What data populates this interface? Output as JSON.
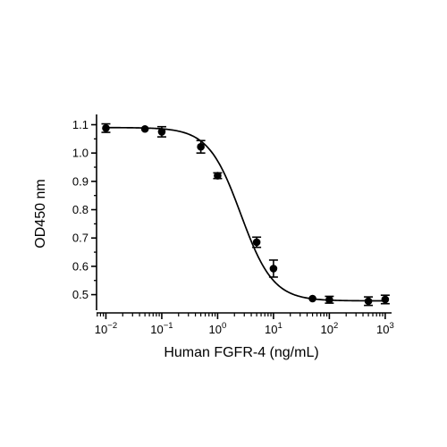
{
  "chart_data": {
    "type": "scatter",
    "xlabel": "Human FGFR-4 (ng/mL)",
    "ylabel": "OD450 nm",
    "xscale": "log",
    "xlim": [
      0.0068,
      1300
    ],
    "ylim": [
      0.445,
      1.13
    ],
    "x_ticks": [
      {
        "value": 0.01,
        "base": "10",
        "exp": "-2"
      },
      {
        "value": 0.1,
        "base": "10",
        "exp": "-1"
      },
      {
        "value": 1,
        "base": "10",
        "exp": "0"
      },
      {
        "value": 10,
        "base": "10",
        "exp": "1"
      },
      {
        "value": 100,
        "base": "10",
        "exp": "2"
      },
      {
        "value": 1000,
        "base": "10",
        "exp": "3"
      }
    ],
    "y_ticks": [
      {
        "value": 0.5,
        "label": "0.5"
      },
      {
        "value": 0.6,
        "label": "0.6"
      },
      {
        "value": 0.7,
        "label": "0.7"
      },
      {
        "value": 0.8,
        "label": "0.8"
      },
      {
        "value": 0.9,
        "label": "0.9"
      },
      {
        "value": 1.0,
        "label": "1.0"
      },
      {
        "value": 1.1,
        "label": "1.1"
      }
    ],
    "points": [
      {
        "x": 0.01,
        "y": 1.088,
        "err": 0.015
      },
      {
        "x": 0.05,
        "y": 1.085,
        "err": 0.004
      },
      {
        "x": 0.1,
        "y": 1.075,
        "err": 0.018
      },
      {
        "x": 0.5,
        "y": 1.022,
        "err": 0.022
      },
      {
        "x": 1,
        "y": 0.92,
        "err": 0.01
      },
      {
        "x": 5,
        "y": 0.685,
        "err": 0.018
      },
      {
        "x": 10,
        "y": 0.592,
        "err": 0.03
      },
      {
        "x": 50,
        "y": 0.486,
        "err": 0.004
      },
      {
        "x": 100,
        "y": 0.482,
        "err": 0.012
      },
      {
        "x": 500,
        "y": 0.477,
        "err": 0.015
      },
      {
        "x": 1000,
        "y": 0.483,
        "err": 0.015
      }
    ],
    "fit": {
      "model": "4PL",
      "top": 1.09,
      "bottom": 0.478,
      "ec50": 2.6,
      "hill": 1.5
    },
    "grid": false,
    "legend": "none"
  }
}
